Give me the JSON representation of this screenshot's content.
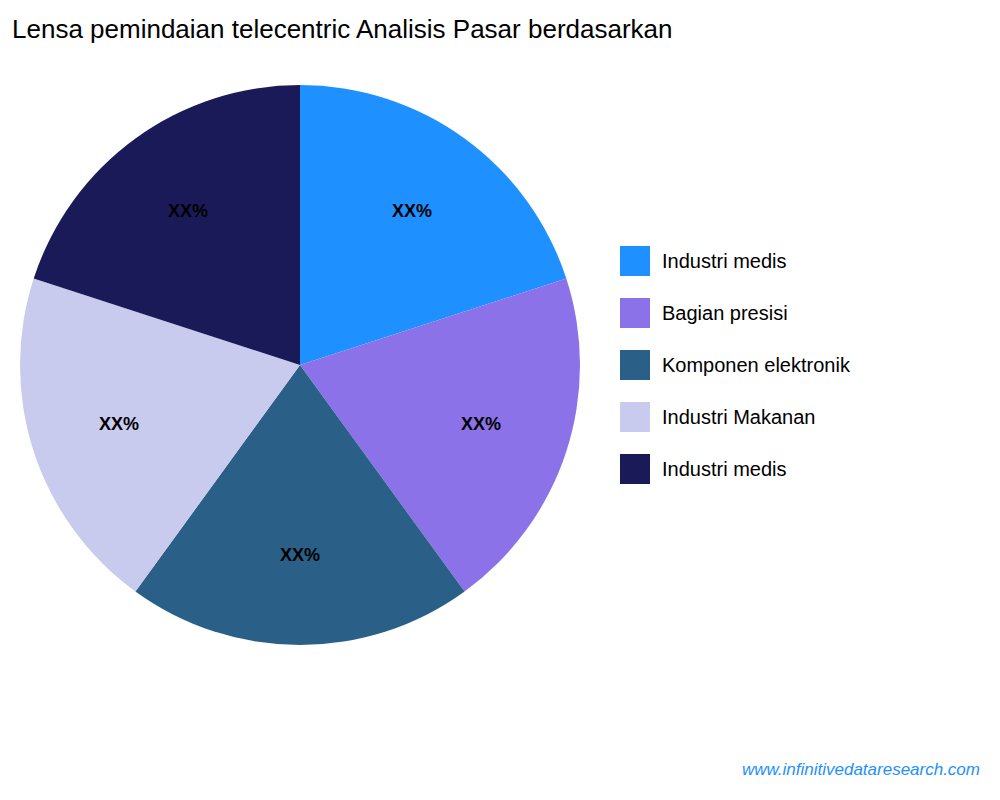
{
  "chart_data": {
    "type": "pie",
    "title": "Lensa pemindaian telecentric Analisis Pasar berdasarkan",
    "categories": [
      "Industri medis",
      "Bagian presisi",
      "Komponen elektronik",
      "Industri Makanan",
      "Industri medis"
    ],
    "values": [
      20,
      20,
      20,
      20,
      20
    ],
    "value_labels": [
      "XX%",
      "XX%",
      "XX%",
      "XX%",
      "XX%"
    ],
    "colors": [
      "#1E90FF",
      "#8B72E8",
      "#2A5F88",
      "#C8CAEE",
      "#1A1A58"
    ],
    "data_labels": true,
    "legend": "right",
    "caption": "www.infinitivedataresearch.com"
  }
}
